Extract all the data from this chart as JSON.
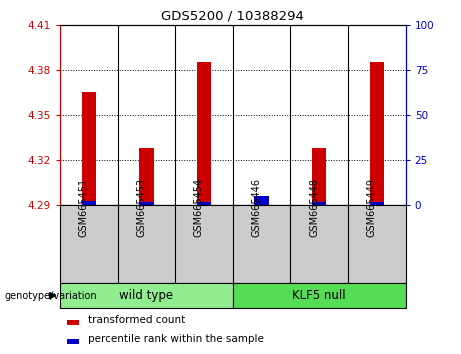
{
  "title": "GDS5200 / 10388294",
  "categories": [
    "GSM665451",
    "GSM665453",
    "GSM665454",
    "GSM665446",
    "GSM665448",
    "GSM665449"
  ],
  "red_values": [
    4.365,
    4.328,
    4.385,
    4.294,
    4.328,
    4.385
  ],
  "blue_values": [
    4.293,
    4.292,
    4.292,
    4.296,
    4.292,
    4.292
  ],
  "ymin": 4.29,
  "ymax": 4.41,
  "yticks_left": [
    4.29,
    4.32,
    4.35,
    4.38,
    4.41
  ],
  "yticks_right": [
    0,
    25,
    50,
    75,
    100
  ],
  "yright_min": 0,
  "yright_max": 100,
  "group1_label": "wild type",
  "group2_label": "KLF5 null",
  "group1_color": "#90EE90",
  "group2_color": "#55DD55",
  "bar_bg_color": "#CCCCCC",
  "plot_bg_color": "#FFFFFF",
  "red_color": "#CC0000",
  "blue_color": "#0000CC",
  "genotype_label": "genotype/variation",
  "legend_red": "transformed count",
  "legend_blue": "percentile rank within the sample",
  "bar_width": 0.25
}
